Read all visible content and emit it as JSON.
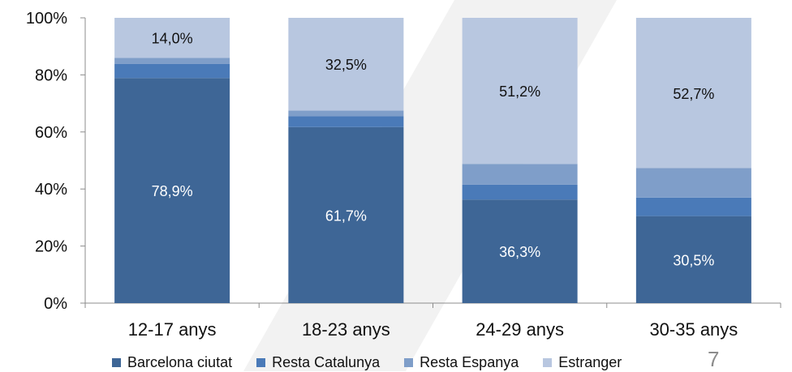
{
  "chart_data": {
    "type": "bar",
    "stacked": true,
    "categories": [
      "12-17 anys",
      "18-23 anys",
      "24-29 anys",
      "30-35 anys"
    ],
    "series": [
      {
        "name": "Barcelona ciutat",
        "color": "#3e6696",
        "values": [
          78.9,
          61.7,
          36.3,
          30.5
        ]
      },
      {
        "name": "Resta Catalunya",
        "color": "#4a7ab8",
        "values": [
          5.0,
          3.8,
          5.2,
          6.5
        ]
      },
      {
        "name": "Resta Espanya",
        "color": "#7f9ec9",
        "values": [
          2.1,
          2.0,
          7.3,
          10.3
        ]
      },
      {
        "name": "Estranger",
        "color": "#b8c7e0",
        "values": [
          14.0,
          32.5,
          51.2,
          52.7
        ]
      }
    ],
    "data_labels": [
      {
        "category": 0,
        "series": 0,
        "text": "78,9%"
      },
      {
        "category": 0,
        "series": 3,
        "text": "14,0%"
      },
      {
        "category": 1,
        "series": 0,
        "text": "61,7%"
      },
      {
        "category": 1,
        "series": 3,
        "text": "32,5%"
      },
      {
        "category": 2,
        "series": 0,
        "text": "36,3%"
      },
      {
        "category": 2,
        "series": 3,
        "text": "51,2%"
      },
      {
        "category": 3,
        "series": 0,
        "text": "30,5%"
      },
      {
        "category": 3,
        "series": 3,
        "text": "52,7%"
      }
    ],
    "ylim": [
      0,
      100
    ],
    "yticks": [
      "0%",
      "20%",
      "40%",
      "60%",
      "80%",
      "100%"
    ],
    "title": "",
    "xlabel": "",
    "ylabel": "",
    "legend_position": "bottom",
    "grid": false
  },
  "page_number": "7"
}
